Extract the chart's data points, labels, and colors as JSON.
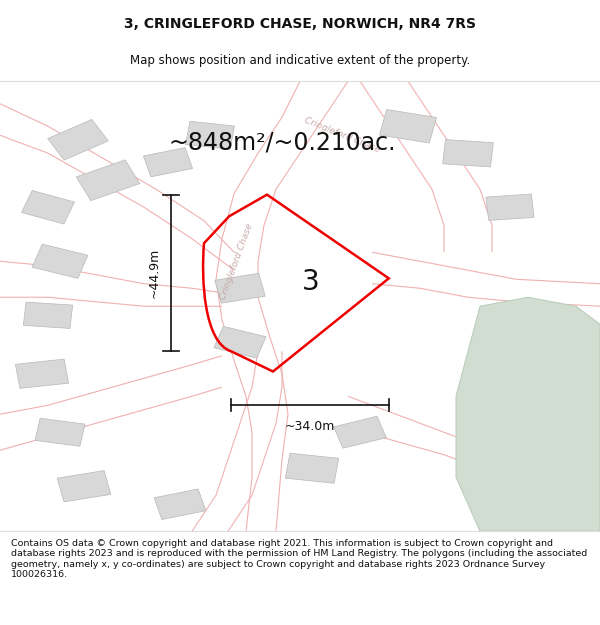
{
  "title": "3, CRINGLEFORD CHASE, NORWICH, NR4 7RS",
  "subtitle": "Map shows position and indicative extent of the property.",
  "area_text": "~848m²/~0.210ac.",
  "label": "3",
  "dim_height": "~44.9m",
  "dim_width": "~34.0m",
  "footer": "Contains OS data © Crown copyright and database right 2021. This information is subject to Crown copyright and database rights 2023 and is reproduced with the permission of HM Land Registry. The polygons (including the associated geometry, namely x, y co-ordinates) are subject to Crown copyright and database rights 2023 Ordnance Survey 100026316.",
  "bg_color": "#ffffff",
  "map_bg": "#ffffff",
  "road_color": "#f0b0b0",
  "road_lw": 0.8,
  "road_label_color": "#c8a8a8",
  "building_color": "#d8d8d8",
  "building_edge": "#b8b8b8",
  "plot_color": "#ee0000",
  "plot_lw": 1.8,
  "green_color": "#d0ddd0",
  "green_edge": "#b8ccb8",
  "title_fontsize": 10,
  "subtitle_fontsize": 8.5,
  "area_fontsize": 17,
  "label_fontsize": 20,
  "dim_fontsize": 9,
  "footer_fontsize": 6.8
}
